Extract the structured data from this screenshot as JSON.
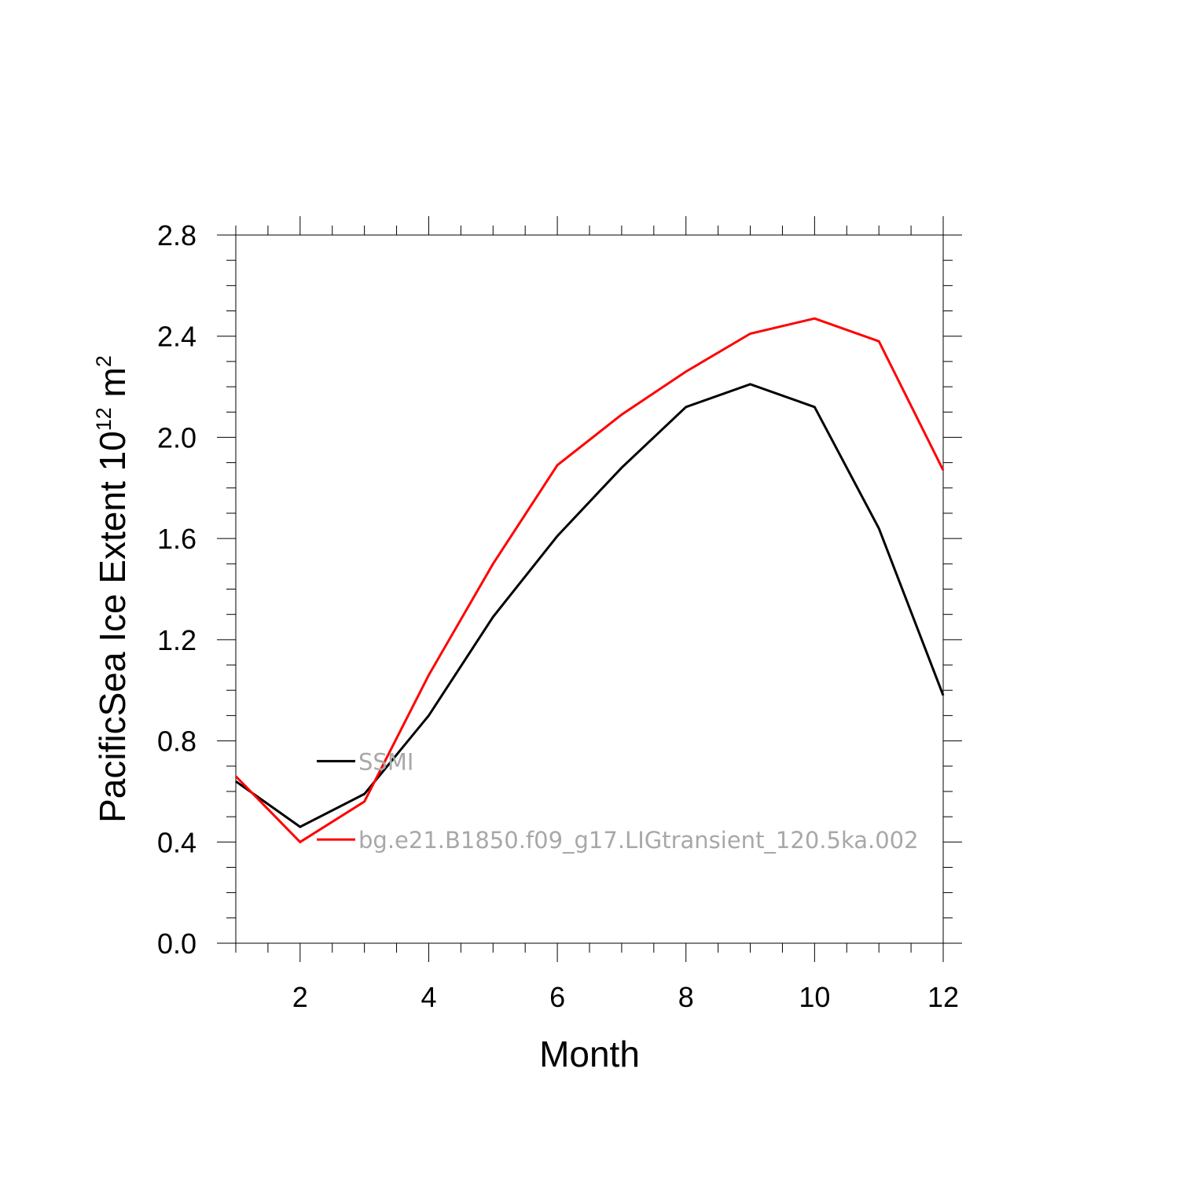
{
  "chart_data": {
    "type": "line",
    "title": "",
    "xlabel": "Month",
    "ylabel": "PacificSea Ice Extent 10",
    "ylabel_superscript": "12",
    "ylabel_unit": " m",
    "ylabel_unit_superscript": "2",
    "xlim": [
      1,
      12
    ],
    "ylim": [
      0,
      2.8
    ],
    "xticks": [
      2,
      4,
      6,
      8,
      10,
      12
    ],
    "xtick_labels": [
      "2",
      "4",
      "6",
      "8",
      "10",
      "12"
    ],
    "yticks": [
      0,
      0.4,
      0.8,
      1.2,
      1.6,
      2.0,
      2.4,
      2.8
    ],
    "ytick_labels": [
      "0.0",
      "0.4",
      "0.8",
      "1.2",
      "1.6",
      "2.0",
      "2.4",
      "2.8"
    ],
    "x": [
      1,
      2,
      3,
      4,
      5,
      6,
      7,
      8,
      9,
      10,
      11,
      12
    ],
    "series": [
      {
        "name": "SSMI",
        "color": "#000000",
        "values": [
          0.64,
          0.46,
          0.59,
          0.9,
          1.29,
          1.61,
          1.88,
          2.12,
          2.21,
          2.12,
          1.64,
          0.98
        ]
      },
      {
        "name": "bg.e21.B1850.f09_g17.LIGtransient_120.5ka.002",
        "color": "#ff0000",
        "values": [
          0.66,
          0.4,
          0.56,
          1.06,
          1.5,
          1.89,
          2.09,
          2.26,
          2.41,
          2.47,
          2.38,
          1.87
        ]
      }
    ],
    "legend_position": "inside-lower-left",
    "grid": false
  }
}
